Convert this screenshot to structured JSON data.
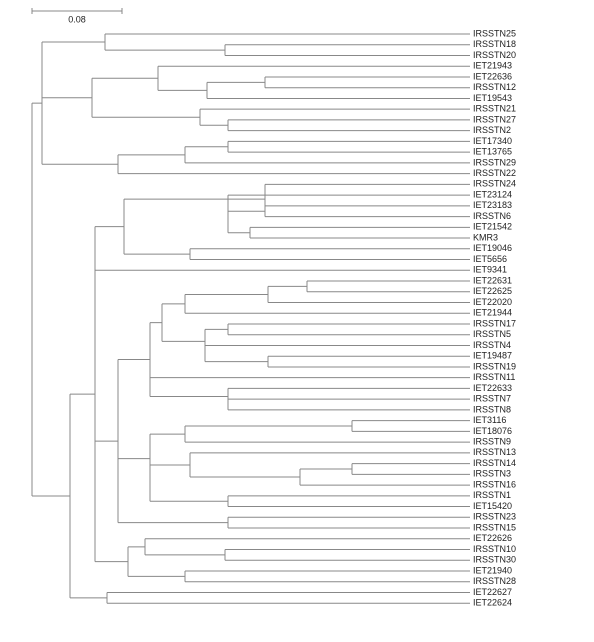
{
  "scale_bar": {
    "label": "0.08"
  },
  "leaves": [
    "IRSSTN25",
    "IRSSTN18",
    "IRSSTN20",
    "IET21943",
    "IET22636",
    "IRSSTN12",
    "IET19543",
    "IRSSTN21",
    "IRSSTN27",
    "IRSSTN2",
    "IET17340",
    "IET13765",
    "IRSSTN29",
    "IRSSTN22",
    "IRSSTN24",
    "IET23124",
    "IET23183",
    "IRSSTN6",
    "IET21542",
    "KMR3",
    "IET19046",
    "IET5656",
    "IET9341",
    "IET22631",
    "IET22625",
    "IET22020",
    "IET21944",
    "IRSSTN17",
    "IRSSTN5",
    "IRSSTN4",
    "IET19487",
    "IRSSTN19",
    "IRSSTN11",
    "IET22633",
    "IRSSTN7",
    "IRSSTN8",
    "IET3116",
    "IET18076",
    "IRSSTN9",
    "IRSSTN13",
    "IRSSTN14",
    "IRSSTN3",
    "IRSSTN16",
    "IRSSTN1",
    "IET15420",
    "IRSSTN23",
    "IRSSTN15",
    "IET22626",
    "IRSSTN10",
    "IRSSTN30",
    "IET21940",
    "IRSSTN28",
    "IET22627",
    "IET22624"
  ]
}
